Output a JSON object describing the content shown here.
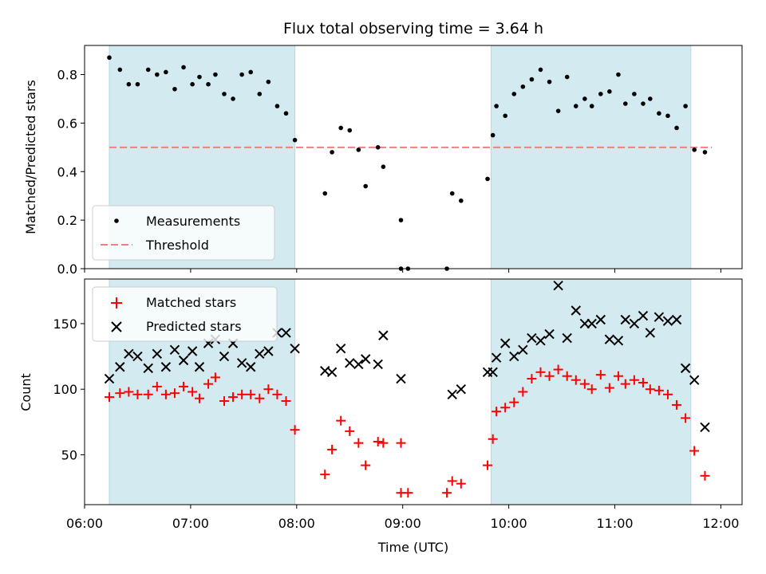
{
  "chart_data": [
    {
      "type": "scatter",
      "title": "Flux total observing time = 3.64 h",
      "ylabel": "Matched/Predicted stars",
      "xlabel": "",
      "xlim": [
        "06:00",
        "12:12"
      ],
      "ylim": [
        0,
        0.92
      ],
      "yticks": [
        0.0,
        0.2,
        0.4,
        0.6,
        0.8
      ],
      "ytick_labels": [
        "0.0",
        "0.2",
        "0.4",
        "0.6",
        "0.8"
      ],
      "shaded_intervals": [
        [
          "06:14",
          "07:59"
        ],
        [
          "09:50",
          "11:43"
        ]
      ],
      "shade_color": "#d3eaf1",
      "legend": {
        "placement": "lower-left",
        "entries": [
          "Measurements",
          "Threshold"
        ]
      },
      "threshold": {
        "name": "Threshold",
        "value": 0.5,
        "x_range": [
          "06:14",
          "11:55"
        ],
        "color": "#f08080",
        "style": "dashed"
      },
      "series": [
        {
          "name": "Measurements",
          "marker": "dot",
          "color": "#000000",
          "points": [
            [
              "06:14",
              0.87
            ],
            [
              "06:20",
              0.82
            ],
            [
              "06:25",
              0.76
            ],
            [
              "06:30",
              0.76
            ],
            [
              "06:36",
              0.82
            ],
            [
              "06:41",
              0.8
            ],
            [
              "06:46",
              0.81
            ],
            [
              "06:51",
              0.74
            ],
            [
              "06:56",
              0.83
            ],
            [
              "07:01",
              0.76
            ],
            [
              "07:05",
              0.79
            ],
            [
              "07:10",
              0.76
            ],
            [
              "07:14",
              0.8
            ],
            [
              "07:19",
              0.72
            ],
            [
              "07:24",
              0.7
            ],
            [
              "07:29",
              0.8
            ],
            [
              "07:34",
              0.81
            ],
            [
              "07:39",
              0.72
            ],
            [
              "07:44",
              0.77
            ],
            [
              "07:49",
              0.67
            ],
            [
              "07:54",
              0.64
            ],
            [
              "07:59",
              0.53
            ],
            [
              "08:16",
              0.31
            ],
            [
              "08:20",
              0.48
            ],
            [
              "08:25",
              0.58
            ],
            [
              "08:30",
              0.57
            ],
            [
              "08:35",
              0.49
            ],
            [
              "08:39",
              0.34
            ],
            [
              "08:46",
              0.5
            ],
            [
              "08:49",
              0.42
            ],
            [
              "08:59",
              0.2
            ],
            [
              "08:59",
              0.0
            ],
            [
              "09:03",
              0.0
            ],
            [
              "09:25",
              0.0
            ],
            [
              "09:28",
              0.31
            ],
            [
              "09:33",
              0.28
            ],
            [
              "09:48",
              0.37
            ],
            [
              "09:51",
              0.55
            ],
            [
              "09:53",
              0.67
            ],
            [
              "09:58",
              0.63
            ],
            [
              "10:03",
              0.72
            ],
            [
              "10:08",
              0.75
            ],
            [
              "10:13",
              0.78
            ],
            [
              "10:18",
              0.82
            ],
            [
              "10:23",
              0.77
            ],
            [
              "10:28",
              0.65
            ],
            [
              "10:33",
              0.79
            ],
            [
              "10:38",
              0.67
            ],
            [
              "10:43",
              0.7
            ],
            [
              "10:47",
              0.67
            ],
            [
              "10:52",
              0.72
            ],
            [
              "10:57",
              0.73
            ],
            [
              "11:02",
              0.8
            ],
            [
              "11:06",
              0.68
            ],
            [
              "11:11",
              0.72
            ],
            [
              "11:16",
              0.68
            ],
            [
              "11:20",
              0.7
            ],
            [
              "11:25",
              0.64
            ],
            [
              "11:30",
              0.63
            ],
            [
              "11:35",
              0.58
            ],
            [
              "11:40",
              0.67
            ],
            [
              "11:45",
              0.49
            ],
            [
              "11:51",
              0.48
            ]
          ]
        }
      ]
    },
    {
      "type": "scatter",
      "title": "",
      "ylabel": "Count",
      "xlabel": "Time (UTC)",
      "xlim": [
        "06:00",
        "12:12"
      ],
      "ylim": [
        12,
        184
      ],
      "yticks": [
        50,
        100,
        150
      ],
      "ytick_labels": [
        "50",
        "100",
        "150"
      ],
      "xticks": [
        "06:00",
        "07:00",
        "08:00",
        "09:00",
        "10:00",
        "11:00",
        "12:00"
      ],
      "xtick_labels": [
        "06:00",
        "07:00",
        "08:00",
        "09:00",
        "10:00",
        "11:00",
        "12:00"
      ],
      "shaded_intervals": [
        [
          "06:14",
          "07:59"
        ],
        [
          "09:50",
          "11:43"
        ]
      ],
      "shade_color": "#d3eaf1",
      "legend": {
        "placement": "upper-left",
        "entries": [
          "Matched stars",
          "Predicted stars"
        ]
      },
      "series": [
        {
          "name": "Matched stars",
          "marker": "plus",
          "color": "#ff0000",
          "points": [
            [
              "06:14",
              94
            ],
            [
              "06:20",
              97
            ],
            [
              "06:25",
              98
            ],
            [
              "06:30",
              96
            ],
            [
              "06:36",
              96
            ],
            [
              "06:41",
              102
            ],
            [
              "06:46",
              96
            ],
            [
              "06:51",
              97
            ],
            [
              "06:56",
              102
            ],
            [
              "07:01",
              98
            ],
            [
              "07:05",
              93
            ],
            [
              "07:10",
              104
            ],
            [
              "07:14",
              109
            ],
            [
              "07:19",
              91
            ],
            [
              "07:24",
              94
            ],
            [
              "07:29",
              96
            ],
            [
              "07:34",
              96
            ],
            [
              "07:39",
              93
            ],
            [
              "07:44",
              100
            ],
            [
              "07:49",
              96
            ],
            [
              "07:54",
              91
            ],
            [
              "07:59",
              69
            ],
            [
              "08:16",
              35
            ],
            [
              "08:20",
              54
            ],
            [
              "08:25",
              76
            ],
            [
              "08:30",
              68
            ],
            [
              "08:35",
              59
            ],
            [
              "08:39",
              42
            ],
            [
              "08:46",
              60
            ],
            [
              "08:49",
              59
            ],
            [
              "08:59",
              59
            ],
            [
              "08:59",
              21
            ],
            [
              "09:03",
              21
            ],
            [
              "09:25",
              21
            ],
            [
              "09:28",
              30
            ],
            [
              "09:33",
              28
            ],
            [
              "09:48",
              42
            ],
            [
              "09:51",
              62
            ],
            [
              "09:53",
              83
            ],
            [
              "09:58",
              86
            ],
            [
              "10:03",
              90
            ],
            [
              "10:08",
              98
            ],
            [
              "10:13",
              108
            ],
            [
              "10:18",
              113
            ],
            [
              "10:23",
              110
            ],
            [
              "10:28",
              115
            ],
            [
              "10:33",
              110
            ],
            [
              "10:38",
              107
            ],
            [
              "10:43",
              104
            ],
            [
              "10:47",
              100
            ],
            [
              "10:52",
              111
            ],
            [
              "10:57",
              101
            ],
            [
              "11:02",
              110
            ],
            [
              "11:06",
              104
            ],
            [
              "11:11",
              107
            ],
            [
              "11:16",
              105
            ],
            [
              "11:20",
              100
            ],
            [
              "11:25",
              99
            ],
            [
              "11:30",
              96
            ],
            [
              "11:35",
              88
            ],
            [
              "11:40",
              78
            ],
            [
              "11:45",
              53
            ],
            [
              "11:51",
              34
            ]
          ]
        },
        {
          "name": "Predicted stars",
          "marker": "x",
          "color": "#000000",
          "points": [
            [
              "06:14",
              108
            ],
            [
              "06:20",
              117
            ],
            [
              "06:25",
              127
            ],
            [
              "06:30",
              125
            ],
            [
              "06:36",
              116
            ],
            [
              "06:41",
              127
            ],
            [
              "06:46",
              117
            ],
            [
              "06:51",
              130
            ],
            [
              "06:56",
              122
            ],
            [
              "07:01",
              129
            ],
            [
              "07:05",
              117
            ],
            [
              "07:10",
              135
            ],
            [
              "07:14",
              138
            ],
            [
              "07:19",
              125
            ],
            [
              "07:24",
              135
            ],
            [
              "07:29",
              120
            ],
            [
              "07:34",
              117
            ],
            [
              "07:39",
              127
            ],
            [
              "07:44",
              129
            ],
            [
              "07:49",
              143
            ],
            [
              "07:54",
              143
            ],
            [
              "07:59",
              131
            ],
            [
              "08:16",
              114
            ],
            [
              "08:20",
              113
            ],
            [
              "08:25",
              131
            ],
            [
              "08:30",
              120
            ],
            [
              "08:35",
              119
            ],
            [
              "08:39",
              123
            ],
            [
              "08:46",
              119
            ],
            [
              "08:49",
              141
            ],
            [
              "08:59",
              108
            ],
            [
              "09:28",
              96
            ],
            [
              "09:33",
              100
            ],
            [
              "09:48",
              113
            ],
            [
              "09:51",
              113
            ],
            [
              "09:53",
              124
            ],
            [
              "09:58",
              135
            ],
            [
              "10:03",
              125
            ],
            [
              "10:08",
              130
            ],
            [
              "10:13",
              139
            ],
            [
              "10:18",
              137
            ],
            [
              "10:23",
              142
            ],
            [
              "10:28",
              179
            ],
            [
              "10:33",
              139
            ],
            [
              "10:38",
              160
            ],
            [
              "10:43",
              150
            ],
            [
              "10:47",
              150
            ],
            [
              "10:52",
              153
            ],
            [
              "10:57",
              138
            ],
            [
              "11:02",
              137
            ],
            [
              "11:06",
              153
            ],
            [
              "11:11",
              150
            ],
            [
              "11:16",
              156
            ],
            [
              "11:20",
              143
            ],
            [
              "11:25",
              155
            ],
            [
              "11:30",
              152
            ],
            [
              "11:35",
              153
            ],
            [
              "11:40",
              116
            ],
            [
              "11:45",
              107
            ],
            [
              "11:51",
              71
            ]
          ]
        }
      ]
    }
  ]
}
